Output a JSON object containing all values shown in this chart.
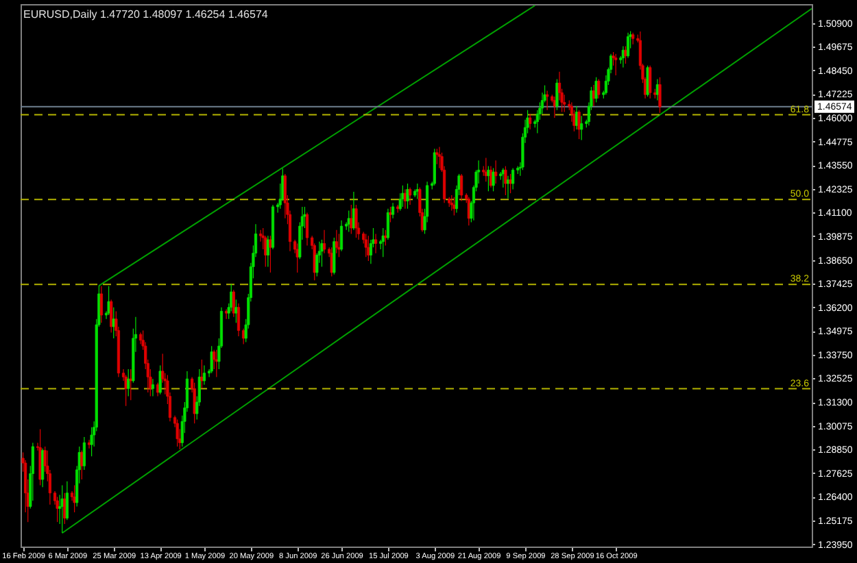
{
  "chart_data": {
    "type": "candlestick",
    "title": "EURUSD,Daily 1.47720 1.48097 1.46254 1.46574",
    "x": [
      "2009-02-16",
      "2009-02-17",
      "2009-02-18",
      "2009-02-19",
      "2009-02-20",
      "2009-02-22",
      "2009-02-23",
      "2009-02-24",
      "2009-02-25",
      "2009-02-26",
      "2009-02-27",
      "2009-03-01",
      "2009-03-02",
      "2009-03-03",
      "2009-03-04",
      "2009-03-05",
      "2009-03-06",
      "2009-03-08",
      "2009-03-09",
      "2009-03-10",
      "2009-03-11",
      "2009-03-12",
      "2009-03-13",
      "2009-03-15",
      "2009-03-16",
      "2009-03-17",
      "2009-03-18",
      "2009-03-19",
      "2009-03-20",
      "2009-03-22",
      "2009-03-23",
      "2009-03-24",
      "2009-03-25",
      "2009-03-26",
      "2009-03-27",
      "2009-03-29",
      "2009-03-30",
      "2009-03-31",
      "2009-04-01",
      "2009-04-02",
      "2009-04-03",
      "2009-04-05",
      "2009-04-06",
      "2009-04-07",
      "2009-04-08",
      "2009-04-09",
      "2009-04-10",
      "2009-04-12",
      "2009-04-13",
      "2009-04-14",
      "2009-04-15",
      "2009-04-16",
      "2009-04-17",
      "2009-04-19",
      "2009-04-20",
      "2009-04-21",
      "2009-04-22",
      "2009-04-23",
      "2009-04-24",
      "2009-04-26",
      "2009-04-27",
      "2009-04-28",
      "2009-04-29",
      "2009-04-30",
      "2009-05-01",
      "2009-05-03",
      "2009-05-04",
      "2009-05-05",
      "2009-05-06",
      "2009-05-07",
      "2009-05-08",
      "2009-05-10",
      "2009-05-11",
      "2009-05-12",
      "2009-05-13",
      "2009-05-14",
      "2009-05-15",
      "2009-05-17",
      "2009-05-18",
      "2009-05-19",
      "2009-05-20",
      "2009-05-21",
      "2009-05-22",
      "2009-05-24",
      "2009-05-25",
      "2009-05-26",
      "2009-05-27",
      "2009-05-28",
      "2009-05-29",
      "2009-05-31",
      "2009-06-01",
      "2009-06-02",
      "2009-06-03",
      "2009-06-04",
      "2009-06-05",
      "2009-06-07",
      "2009-06-08",
      "2009-06-09",
      "2009-06-10",
      "2009-06-11",
      "2009-06-12",
      "2009-06-14",
      "2009-06-15",
      "2009-06-16",
      "2009-06-17",
      "2009-06-18",
      "2009-06-19",
      "2009-06-21",
      "2009-06-22",
      "2009-06-23",
      "2009-06-24",
      "2009-06-25",
      "2009-06-26",
      "2009-06-28",
      "2009-06-29",
      "2009-06-30",
      "2009-07-01",
      "2009-07-02",
      "2009-07-03",
      "2009-07-05",
      "2009-07-06",
      "2009-07-07",
      "2009-07-08",
      "2009-07-09",
      "2009-07-10",
      "2009-07-12",
      "2009-07-13",
      "2009-07-14",
      "2009-07-15",
      "2009-07-16",
      "2009-07-17",
      "2009-07-19",
      "2009-07-20",
      "2009-07-21",
      "2009-07-22",
      "2009-07-23",
      "2009-07-24",
      "2009-07-26",
      "2009-07-27",
      "2009-07-28",
      "2009-07-29",
      "2009-07-30",
      "2009-07-31",
      "2009-08-02",
      "2009-08-03",
      "2009-08-04",
      "2009-08-05",
      "2009-08-06",
      "2009-08-07",
      "2009-08-09",
      "2009-08-10",
      "2009-08-11",
      "2009-08-12",
      "2009-08-13",
      "2009-08-14",
      "2009-08-16",
      "2009-08-17",
      "2009-08-18",
      "2009-08-19",
      "2009-08-20",
      "2009-08-21",
      "2009-08-23",
      "2009-08-24",
      "2009-08-25",
      "2009-08-26",
      "2009-08-27",
      "2009-08-28",
      "2009-08-30",
      "2009-08-31",
      "2009-09-01",
      "2009-09-02",
      "2009-09-03",
      "2009-09-04",
      "2009-09-06",
      "2009-09-07",
      "2009-09-08",
      "2009-09-09",
      "2009-09-10",
      "2009-09-11",
      "2009-09-13",
      "2009-09-14",
      "2009-09-15",
      "2009-09-16",
      "2009-09-17",
      "2009-09-18",
      "2009-09-20",
      "2009-09-21",
      "2009-09-22",
      "2009-09-23",
      "2009-09-24",
      "2009-09-25",
      "2009-09-27",
      "2009-09-28",
      "2009-09-29",
      "2009-09-30",
      "2009-10-01",
      "2009-10-02",
      "2009-10-04",
      "2009-10-05",
      "2009-10-06",
      "2009-10-07",
      "2009-10-08",
      "2009-10-09",
      "2009-10-11",
      "2009-10-12",
      "2009-10-13",
      "2009-10-14",
      "2009-10-15",
      "2009-10-16",
      "2009-10-18",
      "2009-10-19",
      "2009-10-20",
      "2009-10-21",
      "2009-10-22",
      "2009-10-23",
      "2009-10-25",
      "2009-10-26",
      "2009-10-27",
      "2009-10-28",
      "2009-10-29",
      "2009-10-30",
      "2009-11-01",
      "2009-11-02",
      "2009-11-03"
    ],
    "ohlc": [
      [
        1.284,
        1.287,
        1.277,
        1.2815
      ],
      [
        1.2815,
        1.283,
        1.256,
        1.266
      ],
      [
        1.266,
        1.273,
        1.251,
        1.259
      ],
      [
        1.259,
        1.28,
        1.258,
        1.276
      ],
      [
        1.276,
        1.292,
        1.262,
        1.29
      ],
      [
        1.29,
        1.292,
        1.288,
        1.2895
      ],
      [
        1.2895,
        1.299,
        1.27,
        1.273
      ],
      [
        1.273,
        1.289,
        1.269,
        1.288
      ],
      [
        1.288,
        1.29,
        1.277,
        1.28
      ],
      [
        1.28,
        1.288,
        1.272,
        1.276
      ],
      [
        1.276,
        1.278,
        1.26,
        1.266
      ],
      [
        1.266,
        1.267,
        1.26,
        1.262
      ],
      [
        1.262,
        1.264,
        1.251,
        1.258
      ],
      [
        1.258,
        1.265,
        1.25,
        1.259
      ],
      [
        1.259,
        1.27,
        1.2453,
        1.263
      ],
      [
        1.263,
        1.266,
        1.25,
        1.253
      ],
      [
        1.253,
        1.272,
        1.252,
        1.266
      ],
      [
        1.266,
        1.267,
        1.262,
        1.264
      ],
      [
        1.264,
        1.27,
        1.256,
        1.261
      ],
      [
        1.261,
        1.28,
        1.259,
        1.278
      ],
      [
        1.278,
        1.29,
        1.271,
        1.287
      ],
      [
        1.287,
        1.288,
        1.273,
        1.28
      ],
      [
        1.28,
        1.295,
        1.278,
        1.292
      ],
      [
        1.292,
        1.2935,
        1.289,
        1.291
      ],
      [
        1.291,
        1.3,
        1.285,
        1.296
      ],
      [
        1.296,
        1.303,
        1.29,
        1.3
      ],
      [
        1.3,
        1.356,
        1.298,
        1.353
      ],
      [
        1.353,
        1.3732,
        1.352,
        1.369
      ],
      [
        1.369,
        1.373,
        1.354,
        1.358
      ],
      [
        1.358,
        1.36,
        1.356,
        1.359
      ],
      [
        1.359,
        1.373,
        1.358,
        1.365
      ],
      [
        1.365,
        1.366,
        1.349,
        1.352
      ],
      [
        1.352,
        1.362,
        1.346,
        1.356
      ],
      [
        1.356,
        1.36,
        1.347,
        1.35
      ],
      [
        1.35,
        1.352,
        1.326,
        1.328
      ],
      [
        1.328,
        1.33,
        1.324,
        1.326
      ],
      [
        1.326,
        1.327,
        1.311,
        1.32
      ],
      [
        1.32,
        1.33,
        1.316,
        1.325
      ],
      [
        1.325,
        1.33,
        1.314,
        1.324
      ],
      [
        1.324,
        1.351,
        1.323,
        1.346
      ],
      [
        1.346,
        1.357,
        1.339,
        1.348
      ],
      [
        1.348,
        1.349,
        1.343,
        1.345
      ],
      [
        1.345,
        1.35,
        1.34,
        1.342
      ],
      [
        1.342,
        1.344,
        1.33,
        1.333
      ],
      [
        1.333,
        1.335,
        1.318,
        1.326
      ],
      [
        1.326,
        1.33,
        1.316,
        1.32
      ],
      [
        1.32,
        1.325,
        1.316,
        1.322
      ],
      [
        1.322,
        1.323,
        1.316,
        1.318
      ],
      [
        1.318,
        1.332,
        1.317,
        1.329
      ],
      [
        1.329,
        1.338,
        1.323,
        1.325
      ],
      [
        1.325,
        1.328,
        1.317,
        1.324
      ],
      [
        1.324,
        1.327,
        1.312,
        1.316
      ],
      [
        1.316,
        1.318,
        1.303,
        1.305
      ],
      [
        1.305,
        1.306,
        1.3,
        1.302
      ],
      [
        1.302,
        1.304,
        1.29,
        1.294
      ],
      [
        1.294,
        1.299,
        1.2886,
        1.292
      ],
      [
        1.292,
        1.306,
        1.29,
        1.303
      ],
      [
        1.303,
        1.313,
        1.297,
        1.31
      ],
      [
        1.31,
        1.329,
        1.308,
        1.325
      ],
      [
        1.325,
        1.326,
        1.318,
        1.32
      ],
      [
        1.32,
        1.323,
        1.302,
        1.307
      ],
      [
        1.307,
        1.316,
        1.304,
        1.313
      ],
      [
        1.313,
        1.33,
        1.311,
        1.326
      ],
      [
        1.326,
        1.335,
        1.32,
        1.324
      ],
      [
        1.324,
        1.332,
        1.322,
        1.328
      ],
      [
        1.328,
        1.33,
        1.326,
        1.329
      ],
      [
        1.329,
        1.342,
        1.328,
        1.339
      ],
      [
        1.339,
        1.34,
        1.33,
        1.335
      ],
      [
        1.335,
        1.34,
        1.326,
        1.334
      ],
      [
        1.334,
        1.346,
        1.33,
        1.342
      ],
      [
        1.342,
        1.362,
        1.341,
        1.36
      ],
      [
        1.36,
        1.361,
        1.356,
        1.359
      ],
      [
        1.359,
        1.364,
        1.356,
        1.362
      ],
      [
        1.362,
        1.374,
        1.36,
        1.37
      ],
      [
        1.37,
        1.371,
        1.357,
        1.359
      ],
      [
        1.359,
        1.366,
        1.354,
        1.362
      ],
      [
        1.362,
        1.364,
        1.347,
        1.35
      ],
      [
        1.35,
        1.351,
        1.343,
        1.346
      ],
      [
        1.346,
        1.356,
        1.344,
        1.353
      ],
      [
        1.353,
        1.369,
        1.351,
        1.367
      ],
      [
        1.367,
        1.385,
        1.365,
        1.383
      ],
      [
        1.383,
        1.394,
        1.377,
        1.39
      ],
      [
        1.39,
        1.405,
        1.388,
        1.4
      ],
      [
        1.4,
        1.402,
        1.396,
        1.399
      ],
      [
        1.399,
        1.403,
        1.392,
        1.398
      ],
      [
        1.398,
        1.399,
        1.383,
        1.389
      ],
      [
        1.389,
        1.399,
        1.383,
        1.397
      ],
      [
        1.397,
        1.399,
        1.38,
        1.393
      ],
      [
        1.393,
        1.415,
        1.392,
        1.414
      ],
      [
        1.414,
        1.416,
        1.411,
        1.415
      ],
      [
        1.415,
        1.426,
        1.413,
        1.418
      ],
      [
        1.418,
        1.4338,
        1.417,
        1.43
      ],
      [
        1.43,
        1.431,
        1.408,
        1.416
      ],
      [
        1.416,
        1.42,
        1.405,
        1.41
      ],
      [
        1.41,
        1.412,
        1.391,
        1.396
      ],
      [
        1.396,
        1.397,
        1.39,
        1.392
      ],
      [
        1.392,
        1.395,
        1.38,
        1.388
      ],
      [
        1.388,
        1.406,
        1.387,
        1.404
      ],
      [
        1.404,
        1.414,
        1.397,
        1.409
      ],
      [
        1.409,
        1.414,
        1.403,
        1.41
      ],
      [
        1.41,
        1.411,
        1.394,
        1.398
      ],
      [
        1.398,
        1.399,
        1.392,
        1.394
      ],
      [
        1.394,
        1.395,
        1.376,
        1.38
      ],
      [
        1.38,
        1.39,
        1.378,
        1.389
      ],
      [
        1.389,
        1.396,
        1.385,
        1.391
      ],
      [
        1.391,
        1.397,
        1.383,
        1.395
      ],
      [
        1.395,
        1.402,
        1.39,
        1.392
      ],
      [
        1.392,
        1.393,
        1.388,
        1.39
      ],
      [
        1.39,
        1.393,
        1.378,
        1.38
      ],
      [
        1.38,
        1.398,
        1.379,
        1.396
      ],
      [
        1.396,
        1.402,
        1.39,
        1.393
      ],
      [
        1.393,
        1.4,
        1.388,
        1.392
      ],
      [
        1.392,
        1.407,
        1.391,
        1.404
      ],
      [
        1.404,
        1.406,
        1.402,
        1.405
      ],
      [
        1.405,
        1.412,
        1.401,
        1.408
      ],
      [
        1.408,
        1.415,
        1.4,
        1.403
      ],
      [
        1.403,
        1.4218,
        1.402,
        1.413
      ],
      [
        1.413,
        1.415,
        1.398,
        1.403
      ],
      [
        1.403,
        1.406,
        1.397,
        1.4
      ],
      [
        1.4,
        1.401,
        1.395,
        1.397
      ],
      [
        1.397,
        1.4,
        1.388,
        1.393
      ],
      [
        1.393,
        1.399,
        1.386,
        1.389
      ],
      [
        1.389,
        1.397,
        1.3845,
        1.395
      ],
      [
        1.395,
        1.403,
        1.393,
        1.397
      ],
      [
        1.397,
        1.4,
        1.39,
        1.395
      ],
      [
        1.395,
        1.397,
        1.392,
        1.396
      ],
      [
        1.396,
        1.403,
        1.388,
        1.399
      ],
      [
        1.399,
        1.402,
        1.394,
        1.398
      ],
      [
        1.398,
        1.413,
        1.397,
        1.411
      ],
      [
        1.411,
        1.414,
        1.406,
        1.41
      ],
      [
        1.41,
        1.416,
        1.408,
        1.414
      ],
      [
        1.414,
        1.415,
        1.411,
        1.413
      ],
      [
        1.413,
        1.421,
        1.412,
        1.418
      ],
      [
        1.418,
        1.425,
        1.414,
        1.421
      ],
      [
        1.421,
        1.423,
        1.413,
        1.417
      ],
      [
        1.417,
        1.426,
        1.413,
        1.423
      ],
      [
        1.423,
        1.424,
        1.415,
        1.42
      ],
      [
        1.42,
        1.423,
        1.419,
        1.422
      ],
      [
        1.422,
        1.426,
        1.418,
        1.423
      ],
      [
        1.423,
        1.424,
        1.409,
        1.411
      ],
      [
        1.411,
        1.413,
        1.401,
        1.402
      ],
      [
        1.402,
        1.413,
        1.4,
        1.409
      ],
      [
        1.409,
        1.427,
        1.406,
        1.425
      ],
      [
        1.425,
        1.427,
        1.423,
        1.426
      ],
      [
        1.426,
        1.444,
        1.425,
        1.442
      ],
      [
        1.442,
        1.444,
        1.436,
        1.441
      ],
      [
        1.441,
        1.445,
        1.434,
        1.44
      ],
      [
        1.44,
        1.442,
        1.432,
        1.433
      ],
      [
        1.433,
        1.435,
        1.416,
        1.418
      ],
      [
        1.418,
        1.419,
        1.414,
        1.416
      ],
      [
        1.416,
        1.42,
        1.412,
        1.415
      ],
      [
        1.415,
        1.419,
        1.4095,
        1.413
      ],
      [
        1.413,
        1.425,
        1.411,
        1.423
      ],
      [
        1.423,
        1.431,
        1.42,
        1.43
      ],
      [
        1.43,
        1.431,
        1.417,
        1.42
      ],
      [
        1.42,
        1.421,
        1.416,
        1.418
      ],
      [
        1.418,
        1.419,
        1.4043,
        1.408
      ],
      [
        1.408,
        1.417,
        1.406,
        1.416
      ],
      [
        1.416,
        1.425,
        1.407,
        1.424
      ],
      [
        1.424,
        1.433,
        1.422,
        1.432
      ],
      [
        1.432,
        1.438,
        1.426,
        1.433
      ],
      [
        1.433,
        1.435,
        1.43,
        1.432
      ],
      [
        1.432,
        1.4393,
        1.427,
        1.43
      ],
      [
        1.43,
        1.435,
        1.422,
        1.433
      ],
      [
        1.433,
        1.435,
        1.424,
        1.425
      ],
      [
        1.425,
        1.434,
        1.422,
        1.432
      ],
      [
        1.432,
        1.438,
        1.426,
        1.43
      ],
      [
        1.43,
        1.432,
        1.428,
        1.431
      ],
      [
        1.431,
        1.434,
        1.424,
        1.433
      ],
      [
        1.433,
        1.435,
        1.42,
        1.426
      ],
      [
        1.426,
        1.43,
        1.4183,
        1.428
      ],
      [
        1.428,
        1.431,
        1.421,
        1.426
      ],
      [
        1.426,
        1.434,
        1.423,
        1.433
      ],
      [
        1.433,
        1.435,
        1.431,
        1.434
      ],
      [
        1.434,
        1.437,
        1.43,
        1.4345
      ],
      [
        1.4345,
        1.452,
        1.433,
        1.45
      ],
      [
        1.45,
        1.459,
        1.447,
        1.455
      ],
      [
        1.455,
        1.464,
        1.452,
        1.46
      ],
      [
        1.46,
        1.462,
        1.454,
        1.457
      ],
      [
        1.457,
        1.459,
        1.455,
        1.458
      ],
      [
        1.458,
        1.464,
        1.452,
        1.462
      ],
      [
        1.462,
        1.468,
        1.459,
        1.465
      ],
      [
        1.465,
        1.473,
        1.462,
        1.469
      ],
      [
        1.469,
        1.4768,
        1.468,
        1.472
      ],
      [
        1.472,
        1.474,
        1.464,
        1.471
      ],
      [
        1.471,
        1.472,
        1.468,
        1.469
      ],
      [
        1.469,
        1.471,
        1.46,
        1.466
      ],
      [
        1.466,
        1.48,
        1.464,
        1.478
      ],
      [
        1.478,
        1.4838,
        1.469,
        1.473
      ],
      [
        1.473,
        1.475,
        1.463,
        1.468
      ],
      [
        1.468,
        1.472,
        1.463,
        1.467
      ],
      [
        1.467,
        1.469,
        1.464,
        1.466
      ],
      [
        1.466,
        1.468,
        1.458,
        1.462
      ],
      [
        1.462,
        1.464,
        1.453,
        1.456
      ],
      [
        1.456,
        1.466,
        1.454,
        1.463
      ],
      [
        1.463,
        1.464,
        1.449,
        1.454
      ],
      [
        1.454,
        1.461,
        1.4485,
        1.457
      ],
      [
        1.457,
        1.459,
        1.455,
        1.458
      ],
      [
        1.458,
        1.468,
        1.456,
        1.466
      ],
      [
        1.466,
        1.476,
        1.464,
        1.474
      ],
      [
        1.474,
        1.477,
        1.466,
        1.47
      ],
      [
        1.47,
        1.481,
        1.468,
        1.479
      ],
      [
        1.479,
        1.48,
        1.47,
        1.472
      ],
      [
        1.472,
        1.474,
        1.47,
        1.473
      ],
      [
        1.473,
        1.482,
        1.472,
        1.479
      ],
      [
        1.479,
        1.486,
        1.477,
        1.485
      ],
      [
        1.485,
        1.493,
        1.483,
        1.492
      ],
      [
        1.492,
        1.494,
        1.487,
        1.491
      ],
      [
        1.491,
        1.493,
        1.482,
        1.49
      ],
      [
        1.49,
        1.492,
        1.488,
        1.491
      ],
      [
        1.491,
        1.497,
        1.486,
        1.495
      ],
      [
        1.495,
        1.497,
        1.488,
        1.492
      ],
      [
        1.492,
        1.504,
        1.491,
        1.502
      ],
      [
        1.502,
        1.5048,
        1.496,
        1.503
      ],
      [
        1.503,
        1.504,
        1.498,
        1.501
      ],
      [
        1.501,
        1.503,
        1.499,
        1.5
      ],
      [
        1.5,
        1.5046,
        1.485,
        1.487
      ],
      [
        1.487,
        1.488,
        1.478,
        1.48
      ],
      [
        1.48,
        1.481,
        1.47,
        1.472
      ],
      [
        1.472,
        1.487,
        1.471,
        1.486
      ],
      [
        1.486,
        1.487,
        1.47,
        1.473
      ],
      [
        1.473,
        1.475,
        1.47,
        1.472
      ],
      [
        1.472,
        1.48,
        1.469,
        1.4772
      ],
      [
        1.4772,
        1.48097,
        1.46254,
        1.46574
      ]
    ],
    "colors": [
      "#e00000",
      "#e00000",
      "#e00000",
      "#00e000",
      "#00e000",
      "#e00000",
      "#e00000",
      "#00e000",
      "#e00000",
      "#e00000",
      "#e00000",
      "#e00000",
      "#e00000",
      "#00e000",
      "#00e000",
      "#e00000",
      "#00e000",
      "#e00000",
      "#e00000",
      "#00e000",
      "#00e000",
      "#e00000",
      "#00e000",
      "#e00000",
      "#00e000",
      "#00e000",
      "#00e000",
      "#00e000",
      "#e00000",
      "#00e000",
      "#00e000",
      "#e00000",
      "#00e000",
      "#e00000",
      "#e00000",
      "#e00000",
      "#e00000",
      "#00e000",
      "#e00000",
      "#00e000",
      "#00e000",
      "#e00000",
      "#e00000",
      "#e00000",
      "#e00000",
      "#e00000",
      "#00e000",
      "#e00000",
      "#00e000",
      "#e00000",
      "#e00000",
      "#e00000",
      "#e00000",
      "#e00000",
      "#e00000",
      "#e00000",
      "#00e000",
      "#00e000",
      "#00e000",
      "#e00000",
      "#e00000",
      "#00e000",
      "#00e000",
      "#e00000",
      "#00e000",
      "#00e000",
      "#00e000",
      "#e00000",
      "#e00000",
      "#00e000",
      "#00e000",
      "#e00000",
      "#00e000",
      "#00e000",
      "#e00000",
      "#00e000",
      "#e00000",
      "#e00000",
      "#00e000",
      "#00e000",
      "#00e000",
      "#00e000",
      "#00e000",
      "#e00000",
      "#e00000",
      "#e00000",
      "#00e000",
      "#e00000",
      "#00e000",
      "#00e000",
      "#00e000",
      "#00e000",
      "#e00000",
      "#e00000",
      "#e00000",
      "#e00000",
      "#e00000",
      "#00e000",
      "#00e000",
      "#00e000",
      "#e00000",
      "#e00000",
      "#e00000",
      "#00e000",
      "#00e000",
      "#00e000",
      "#e00000",
      "#e00000",
      "#e00000",
      "#00e000",
      "#e00000",
      "#e00000",
      "#00e000",
      "#00e000",
      "#00e000",
      "#e00000",
      "#00e000",
      "#e00000",
      "#e00000",
      "#e00000",
      "#e00000",
      "#e00000",
      "#00e000",
      "#00e000",
      "#e00000",
      "#00e000",
      "#00e000",
      "#e00000",
      "#00e000",
      "#e00000",
      "#00e000",
      "#e00000",
      "#00e000",
      "#00e000",
      "#e00000",
      "#00e000",
      "#e00000",
      "#00e000",
      "#00e000",
      "#e00000",
      "#e00000",
      "#00e000",
      "#00e000",
      "#00e000",
      "#00e000",
      "#e00000",
      "#e00000",
      "#e00000",
      "#e00000",
      "#e00000",
      "#e00000",
      "#e00000",
      "#00e000",
      "#00e000",
      "#e00000",
      "#e00000",
      "#e00000",
      "#00e000",
      "#00e000",
      "#00e000",
      "#00e000",
      "#e00000",
      "#e00000",
      "#00e000",
      "#e00000",
      "#00e000",
      "#e00000",
      "#00e000",
      "#00e000",
      "#e00000",
      "#00e000",
      "#e00000",
      "#00e000",
      "#00e000",
      "#00e000",
      "#00e000",
      "#00e000",
      "#00e000",
      "#e00000",
      "#00e000",
      "#00e000",
      "#00e000",
      "#00e000",
      "#00e000",
      "#e00000",
      "#e00000",
      "#e00000",
      "#00e000",
      "#e00000",
      "#e00000",
      "#e00000",
      "#e00000",
      "#e00000",
      "#e00000",
      "#00e000",
      "#e00000",
      "#00e000",
      "#00e000",
      "#00e000",
      "#00e000",
      "#e00000",
      "#00e000",
      "#e00000",
      "#00e000",
      "#00e000",
      "#00e000",
      "#00e000",
      "#e00000",
      "#e00000",
      "#00e000",
      "#00e000",
      "#e00000",
      "#00e000",
      "#00e000",
      "#e00000",
      "#e00000",
      "#e00000",
      "#e00000",
      "#e00000",
      "#00e000",
      "#e00000",
      "#e00000",
      "#00e000",
      "#e00000"
    ],
    "xlim": [
      "2009-02-15",
      "2010-01-04"
    ],
    "xticks": [
      {
        "value": "2009-02-16",
        "label": "16 Feb 2009"
      },
      {
        "value": "2009-03-06",
        "label": "6 Mar 2009"
      },
      {
        "value": "2009-03-25",
        "label": "25 Mar 2009"
      },
      {
        "value": "2009-04-13",
        "label": "13 Apr 2009"
      },
      {
        "value": "2009-05-01",
        "label": "1 May 2009"
      },
      {
        "value": "2009-05-20",
        "label": "20 May 2009"
      },
      {
        "value": "2009-06-08",
        "label": "8 Jun 2009"
      },
      {
        "value": "2009-06-26",
        "label": "26 Jun 2009"
      },
      {
        "value": "2009-07-15",
        "label": "15 Jul 2009"
      },
      {
        "value": "2009-08-03",
        "label": "3 Aug 2009"
      },
      {
        "value": "2009-08-21",
        "label": "21 Aug 2009"
      },
      {
        "value": "2009-09-09",
        "label": "9 Sep 2009"
      },
      {
        "value": "2009-09-28",
        "label": "28 Sep 2009"
      },
      {
        "value": "2009-10-16",
        "label": "16 Oct 2009"
      }
    ],
    "ylim": [
      1.2383,
      1.5188
    ],
    "yticks": [
      {
        "value": 1.509,
        "label": "1.50900"
      },
      {
        "value": 1.49675,
        "label": "1.49675"
      },
      {
        "value": 1.4845,
        "label": "1.48450"
      },
      {
        "value": 1.47225,
        "label": "1.47225"
      },
      {
        "value": 1.46,
        "label": "1.46000"
      },
      {
        "value": 1.44775,
        "label": "1.44775"
      },
      {
        "value": 1.4355,
        "label": "1.43550"
      },
      {
        "value": 1.42325,
        "label": "1.42325"
      },
      {
        "value": 1.411,
        "label": "1.41100"
      },
      {
        "value": 1.39875,
        "label": "1.39875"
      },
      {
        "value": 1.3865,
        "label": "1.38650"
      },
      {
        "value": 1.37425,
        "label": "1.37425"
      },
      {
        "value": 1.362,
        "label": "1.36200"
      },
      {
        "value": 1.34975,
        "label": "1.34975"
      },
      {
        "value": 1.3375,
        "label": "1.33750"
      },
      {
        "value": 1.32525,
        "label": "1.32525"
      },
      {
        "value": 1.313,
        "label": "1.31300"
      },
      {
        "value": 1.30075,
        "label": "1.30075"
      },
      {
        "value": 1.2885,
        "label": "1.28850"
      },
      {
        "value": 1.27625,
        "label": "1.27625"
      },
      {
        "value": 1.264,
        "label": "1.26400"
      },
      {
        "value": 1.25175,
        "label": "1.25175"
      },
      {
        "value": 1.2395,
        "label": "1.23950"
      }
    ],
    "series": [
      {
        "type": "line",
        "color": "#00a000",
        "x": [
          "2009-03-19",
          "2009-09-13"
        ],
        "values": [
          1.3732,
          1.5181
        ]
      },
      {
        "type": "line",
        "color": "#00a000",
        "x": [
          "2009-03-04",
          "2010-01-04"
        ],
        "values": [
          1.2453,
          1.5165
        ]
      }
    ],
    "ref_lines": [
      {
        "axis": "y",
        "value": 1.46574,
        "label": "1.46574",
        "color": "#708090",
        "line_style": "solid"
      },
      {
        "axis": "y",
        "value": 1.4616,
        "color": "#b4b400",
        "line_style": "dashed"
      },
      {
        "axis": "y",
        "value": 1.4178,
        "color": "#b4b400",
        "line_style": "dashed"
      },
      {
        "axis": "y",
        "value": 1.3739,
        "color": "#b4b400",
        "line_style": "dashed"
      },
      {
        "axis": "y",
        "value": 1.3199,
        "color": "#b4b400",
        "line_style": "dashed"
      }
    ],
    "annotations": [
      {
        "text": "61.8",
        "x": "2010-01-04",
        "y": 1.4616
      },
      {
        "text": "50.0",
        "x": "2010-01-04",
        "y": 1.4178
      },
      {
        "text": "38.2",
        "x": "2010-01-04",
        "y": 1.3739
      },
      {
        "text": "23.6",
        "x": "2010-01-04",
        "y": 1.3199
      }
    ],
    "grid": false
  }
}
